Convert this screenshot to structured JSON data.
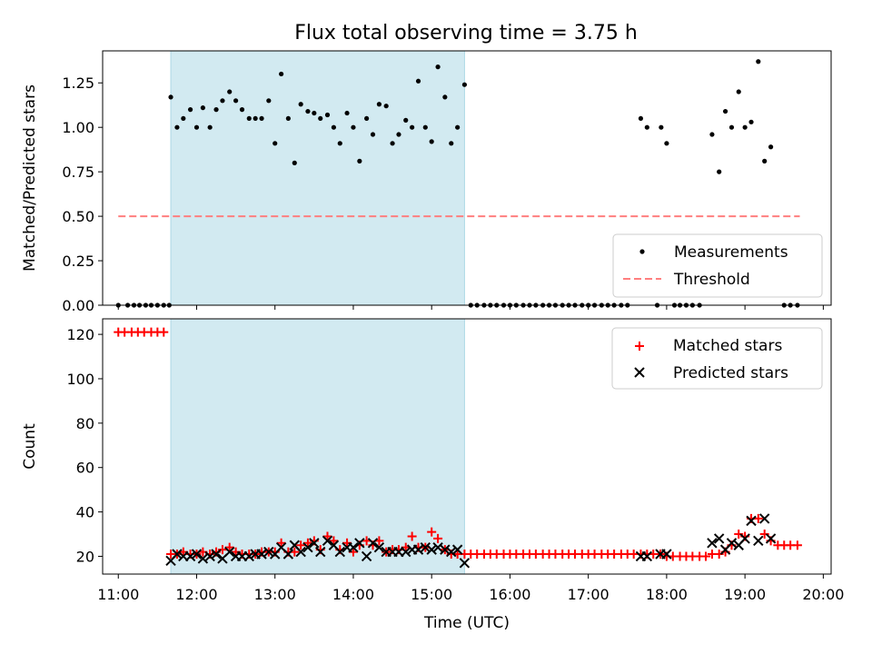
{
  "title": "Flux total observing time = 3.75 h",
  "colors": {
    "shade": "#add8e6",
    "measurement": "#000000",
    "threshold": "#ff7f7f",
    "matched": "#ff0000",
    "predicted": "#000000"
  },
  "chart_data": [
    {
      "type": "scatter",
      "ylabel": "Matched/Predicted stars",
      "xlim": [
        10.8,
        20.1
      ],
      "ylim": [
        0,
        1.43
      ],
      "yticks": [
        "0.00",
        "0.25",
        "0.50",
        "0.75",
        "1.00",
        "1.25"
      ],
      "ytick_values": [
        0,
        0.25,
        0.5,
        0.75,
        1.0,
        1.25
      ],
      "shaded_span": [
        11.67,
        15.42
      ],
      "legend": {
        "position": "lower-right",
        "entries": [
          "Measurements",
          "Threshold"
        ]
      },
      "threshold": {
        "name": "Threshold",
        "y": 0.5,
        "x": [
          11.0,
          19.7
        ]
      },
      "series": [
        {
          "name": "Measurements",
          "x": [
            11.0,
            11.12,
            11.2,
            11.27,
            11.35,
            11.42,
            11.5,
            11.58,
            11.65,
            11.67,
            11.75,
            11.83,
            11.92,
            12.0,
            12.08,
            12.17,
            12.25,
            12.33,
            12.42,
            12.5,
            12.58,
            12.67,
            12.75,
            12.83,
            12.92,
            13.0,
            13.08,
            13.17,
            13.25,
            13.33,
            13.42,
            13.5,
            13.58,
            13.67,
            13.75,
            13.83,
            13.92,
            14.0,
            14.08,
            14.17,
            14.25,
            14.33,
            14.42,
            14.5,
            14.58,
            14.67,
            14.75,
            14.83,
            14.92,
            15.0,
            15.08,
            15.17,
            15.25,
            15.33,
            15.42,
            15.5,
            15.58,
            15.67,
            15.75,
            15.83,
            15.92,
            16.0,
            16.08,
            16.17,
            16.25,
            16.33,
            16.42,
            16.5,
            16.58,
            16.67,
            16.75,
            16.83,
            16.92,
            17.0,
            17.08,
            17.17,
            17.25,
            17.33,
            17.42,
            17.5,
            17.67,
            17.75,
            17.88,
            17.93,
            18.0,
            18.1,
            18.17,
            18.25,
            18.33,
            18.42,
            18.58,
            18.67,
            18.75,
            18.83,
            18.92,
            19.0,
            19.08,
            19.17,
            19.25,
            19.33,
            19.5,
            19.58,
            19.67
          ],
          "y": [
            0,
            0,
            0,
            0,
            0,
            0,
            0,
            0,
            0,
            1.17,
            1.0,
            1.05,
            1.1,
            1.0,
            1.11,
            1.0,
            1.1,
            1.15,
            1.2,
            1.15,
            1.1,
            1.05,
            1.05,
            1.05,
            1.15,
            0.91,
            1.3,
            1.05,
            0.8,
            1.13,
            1.09,
            1.08,
            1.05,
            1.07,
            1.0,
            0.91,
            1.08,
            1.0,
            0.81,
            1.05,
            0.96,
            1.13,
            1.12,
            0.91,
            0.96,
            1.04,
            1.0,
            1.26,
            1.0,
            0.92,
            1.34,
            1.17,
            0.91,
            1.0,
            1.24,
            0,
            0,
            0,
            0,
            0,
            0,
            0,
            0,
            0,
            0,
            0,
            0,
            0,
            0,
            0,
            0,
            0,
            0,
            0,
            0,
            0,
            0,
            0,
            0,
            0,
            1.05,
            1.0,
            0,
            1.0,
            0.91,
            0,
            0,
            0,
            0,
            0,
            0.96,
            0.75,
            1.09,
            1.0,
            1.2,
            1.0,
            1.03,
            1.37,
            0.81,
            0.89,
            0,
            0,
            0
          ]
        }
      ]
    },
    {
      "type": "scatter",
      "ylabel": "Count",
      "xlabel": "Time (UTC)",
      "xlim": [
        10.8,
        20.1
      ],
      "ylim": [
        12,
        127
      ],
      "yticks": [
        "20",
        "40",
        "60",
        "80",
        "100",
        "120"
      ],
      "ytick_values": [
        20,
        40,
        60,
        80,
        100,
        120
      ],
      "xticks": [
        "11:00",
        "12:00",
        "13:00",
        "14:00",
        "15:00",
        "16:00",
        "17:00",
        "18:00",
        "19:00",
        "20:00"
      ],
      "xtick_values": [
        11,
        12,
        13,
        14,
        15,
        16,
        17,
        18,
        19,
        20
      ],
      "shaded_span": [
        11.67,
        15.42
      ],
      "legend": {
        "position": "top-right",
        "entries": [
          "Matched stars",
          "Predicted stars"
        ]
      },
      "series": [
        {
          "name": "Matched stars",
          "x": [
            11.0,
            11.08,
            11.17,
            11.25,
            11.33,
            11.42,
            11.5,
            11.58,
            11.67,
            11.75,
            11.83,
            11.92,
            12.0,
            12.08,
            12.17,
            12.25,
            12.33,
            12.42,
            12.5,
            12.58,
            12.67,
            12.75,
            12.83,
            12.92,
            13.0,
            13.08,
            13.17,
            13.25,
            13.33,
            13.42,
            13.5,
            13.58,
            13.67,
            13.75,
            13.83,
            13.92,
            14.0,
            14.08,
            14.17,
            14.25,
            14.33,
            14.42,
            14.5,
            14.58,
            14.67,
            14.75,
            14.83,
            14.92,
            15.0,
            15.08,
            15.17,
            15.25,
            15.33,
            15.42,
            15.5,
            15.58,
            15.67,
            15.75,
            15.83,
            15.92,
            16.0,
            16.08,
            16.17,
            16.25,
            16.33,
            16.42,
            16.5,
            16.58,
            16.67,
            16.75,
            16.83,
            16.92,
            17.0,
            17.08,
            17.17,
            17.25,
            17.33,
            17.42,
            17.5,
            17.58,
            17.67,
            17.75,
            17.83,
            17.92,
            18.0,
            18.08,
            18.17,
            18.25,
            18.33,
            18.42,
            18.5,
            18.58,
            18.67,
            18.75,
            18.83,
            18.92,
            19.0,
            19.08,
            19.17,
            19.25,
            19.33,
            19.42,
            19.5,
            19.58,
            19.67
          ],
          "y": [
            121,
            121,
            121,
            121,
            121,
            121,
            121,
            121,
            21,
            21,
            22,
            21,
            21,
            22,
            21,
            22,
            23,
            24,
            22,
            21,
            21,
            21,
            22,
            22,
            22,
            26,
            22,
            22,
            25,
            26,
            27,
            23,
            29,
            27,
            23,
            26,
            22,
            25,
            27,
            25,
            27,
            22,
            23,
            23,
            24,
            29,
            24,
            24,
            31,
            28,
            23,
            21,
            21,
            21,
            21,
            21,
            21,
            21,
            21,
            21,
            21,
            21,
            21,
            21,
            21,
            21,
            21,
            21,
            21,
            21,
            21,
            21,
            21,
            21,
            21,
            21,
            21,
            21,
            21,
            21,
            21,
            21,
            21,
            21,
            20,
            20,
            20,
            20,
            20,
            20,
            20,
            21,
            21,
            22,
            25,
            30,
            29,
            37,
            37,
            30,
            27,
            25,
            25,
            25,
            25
          ]
        },
        {
          "name": "Predicted stars",
          "x": [
            11.67,
            11.75,
            11.83,
            11.92,
            12.0,
            12.08,
            12.17,
            12.25,
            12.33,
            12.42,
            12.5,
            12.58,
            12.67,
            12.75,
            12.83,
            12.92,
            13.0,
            13.08,
            13.17,
            13.25,
            13.33,
            13.42,
            13.5,
            13.58,
            13.67,
            13.75,
            13.83,
            13.92,
            14.0,
            14.08,
            14.17,
            14.25,
            14.33,
            14.42,
            14.5,
            14.58,
            14.67,
            14.75,
            14.83,
            14.92,
            15.0,
            15.08,
            15.17,
            15.25,
            15.33,
            15.42,
            17.67,
            17.75,
            17.92,
            18.0,
            18.58,
            18.67,
            18.75,
            18.83,
            18.92,
            19.0,
            19.08,
            19.17,
            19.25,
            19.33
          ],
          "y": [
            18,
            21,
            20,
            20,
            21,
            19,
            20,
            21,
            19,
            22,
            20,
            20,
            20,
            21,
            21,
            22,
            21,
            24,
            21,
            25,
            22,
            24,
            26,
            22,
            27,
            25,
            22,
            24,
            24,
            26,
            20,
            26,
            24,
            22,
            22,
            22,
            22,
            23,
            23,
            24,
            23,
            24,
            23,
            22,
            23,
            17,
            20,
            20,
            21,
            21,
            26,
            28,
            23,
            26,
            25,
            28,
            36,
            27,
            37,
            28
          ]
        }
      ]
    }
  ]
}
